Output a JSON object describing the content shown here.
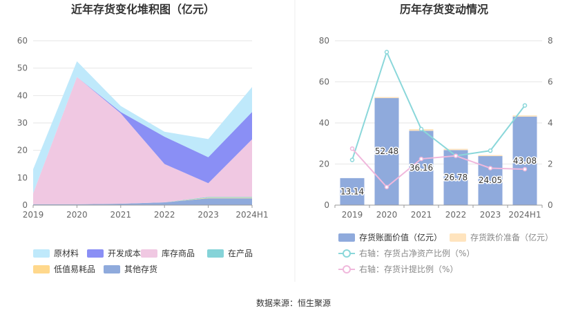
{
  "source": "数据来源：恒生聚源",
  "chart_data": [
    {
      "type": "area",
      "title": "近年存货变化堆积图（亿元）",
      "categories": [
        "2019",
        "2020",
        "2021",
        "2022",
        "2023",
        "2024H1"
      ],
      "ylim": [
        0,
        60
      ],
      "yticks": [
        0,
        10,
        20,
        30,
        40,
        50,
        60
      ],
      "stacked": true,
      "legend_position": "bottom",
      "series": [
        {
          "name": "其他存货",
          "color": "#8FAADC",
          "values": [
            0.3,
            0.3,
            0.5,
            1.0,
            2.5,
            2.5
          ]
        },
        {
          "name": "低值易耗品",
          "color": "#FFD88C",
          "values": [
            0.0,
            0.0,
            0.0,
            0.0,
            0.2,
            0.2
          ]
        },
        {
          "name": "在产品",
          "color": "#85D3D8",
          "values": [
            0.0,
            0.0,
            0.0,
            0.0,
            0.3,
            0.3
          ]
        },
        {
          "name": "库存商品",
          "color": "#F0C8E2",
          "values": [
            4.0,
            46.5,
            33.0,
            14.0,
            5.0,
            21.0
          ]
        },
        {
          "name": "开发成本",
          "color": "#8A8FF5",
          "values": [
            0.0,
            0.0,
            0.5,
            10.0,
            9.5,
            10.0
          ]
        },
        {
          "name": "原材料",
          "color": "#BFE9FB",
          "values": [
            8.8,
            5.7,
            2.2,
            1.8,
            6.6,
            9.1
          ]
        }
      ],
      "legend_order": [
        "原材料",
        "开发成本",
        "库存商品",
        "在产品",
        "低值易耗品",
        "其他存货"
      ]
    },
    {
      "type": "bar",
      "title": "历年存货变动情况",
      "categories": [
        "2019",
        "2020",
        "2021",
        "2022",
        "2023",
        "2024H1"
      ],
      "ylim": [
        0,
        80
      ],
      "yticks": [
        0,
        20,
        40,
        60,
        80
      ],
      "y2lim": [
        0,
        8
      ],
      "y2ticks": [
        0,
        2,
        4,
        6,
        8
      ],
      "legend_position": "bottom",
      "bar_series": [
        {
          "name": "存货账面价值（亿元）",
          "color": "#8FAADC",
          "values": [
            13.14,
            52.48,
            36.16,
            26.78,
            24.05,
            43.08
          ],
          "labels": [
            "13.14",
            "52.48",
            "36.16",
            "26.78",
            "24.05",
            "43.08"
          ]
        },
        {
          "name": "存货跌价准备（亿元）",
          "color": "#FFE4BE",
          "values": [
            0.0,
            0.1,
            0.8,
            0.6,
            0.3,
            0.6
          ]
        }
      ],
      "line_series": [
        {
          "name": "右轴：存货占净资产比例（%）",
          "color": "#8AD7DA",
          "values": [
            2.2,
            7.45,
            3.7,
            2.4,
            2.65,
            4.85
          ]
        },
        {
          "name": "右轴：存货计提比例（%）",
          "color": "#F0B8DC",
          "values": [
            2.75,
            0.88,
            2.25,
            2.4,
            1.8,
            1.75
          ]
        }
      ]
    }
  ]
}
